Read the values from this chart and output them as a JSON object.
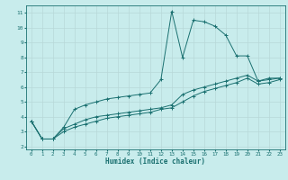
{
  "xlabel": "Humidex (Indice chaleur)",
  "bg_color": "#c8ecec",
  "line_color": "#1a7070",
  "grid_color": "#b8d8d8",
  "xlim": [
    -0.5,
    23.5
  ],
  "ylim": [
    1.8,
    11.5
  ],
  "xticks": [
    0,
    1,
    2,
    3,
    4,
    5,
    6,
    7,
    8,
    9,
    10,
    11,
    12,
    13,
    14,
    15,
    16,
    17,
    18,
    19,
    20,
    21,
    22,
    23
  ],
  "yticks": [
    2,
    3,
    4,
    5,
    6,
    7,
    8,
    9,
    10,
    11
  ],
  "series1_x": [
    0,
    1,
    2,
    3,
    4,
    5,
    6,
    7,
    8,
    9,
    10,
    11,
    12,
    13,
    14,
    15,
    16,
    17,
    18,
    19,
    20,
    21,
    22,
    23
  ],
  "series1_y": [
    3.7,
    2.5,
    2.5,
    3.3,
    4.5,
    4.8,
    5.0,
    5.2,
    5.3,
    5.4,
    5.5,
    5.6,
    6.5,
    11.1,
    8.0,
    10.5,
    10.4,
    10.1,
    9.5,
    8.1,
    8.1,
    6.4,
    6.6,
    6.6
  ],
  "series2_x": [
    0,
    1,
    2,
    3,
    4,
    5,
    6,
    7,
    8,
    9,
    10,
    11,
    12,
    13,
    14,
    15,
    16,
    17,
    18,
    19,
    20,
    21,
    22,
    23
  ],
  "series2_y": [
    3.7,
    2.5,
    2.5,
    3.2,
    3.5,
    3.8,
    4.0,
    4.1,
    4.2,
    4.3,
    4.4,
    4.5,
    4.6,
    4.8,
    5.5,
    5.8,
    6.0,
    6.2,
    6.4,
    6.6,
    6.8,
    6.4,
    6.5,
    6.6
  ],
  "series3_x": [
    0,
    1,
    2,
    3,
    4,
    5,
    6,
    7,
    8,
    9,
    10,
    11,
    12,
    13,
    14,
    15,
    16,
    17,
    18,
    19,
    20,
    21,
    22,
    23
  ],
  "series3_y": [
    3.7,
    2.5,
    2.5,
    3.0,
    3.3,
    3.5,
    3.7,
    3.9,
    4.0,
    4.1,
    4.2,
    4.3,
    4.5,
    4.6,
    5.0,
    5.4,
    5.7,
    5.9,
    6.1,
    6.3,
    6.6,
    6.2,
    6.3,
    6.5
  ]
}
